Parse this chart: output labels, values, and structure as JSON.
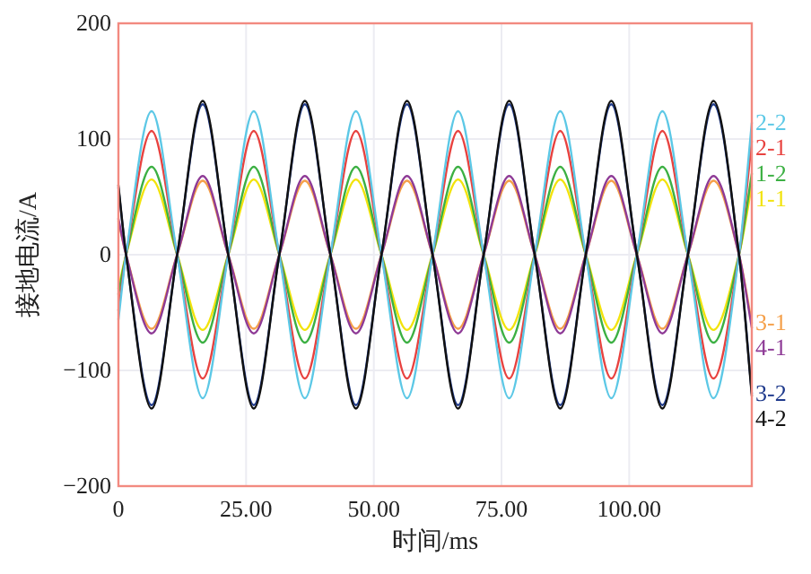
{
  "chart_data": {
    "type": "line",
    "xlabel": "时间/ms",
    "ylabel": "接地电流/A",
    "x": [
      0,
      1.5,
      6.5,
      11.5,
      16.5,
      21.5,
      26.5,
      31.5,
      36.5,
      41.5,
      46.5,
      51.5,
      56.5,
      61.5,
      66.5,
      71.5,
      76.5,
      81.5,
      86.5,
      91.5,
      96.5,
      101.5,
      106.5,
      111.5,
      116.5,
      121.5,
      124
    ],
    "xlim": [
      0,
      124
    ],
    "ylim": [
      -200,
      200
    ],
    "xticks": [
      0,
      {
        "value": 25,
        "label": "25.00"
      },
      {
        "value": 50,
        "label": "50.00"
      },
      {
        "value": 75,
        "label": "75.00"
      },
      {
        "value": 100,
        "label": "100.00"
      }
    ],
    "yticks": [
      200,
      100,
      0,
      {
        "value": -100,
        "label": "−100"
      },
      {
        "value": -200,
        "label": "−200"
      }
    ],
    "grid": true,
    "marker": "none",
    "line_style": "solid",
    "series": [
      {
        "name": "1-1",
        "color": "#f2e30c",
        "values": [
          -29,
          0,
          65,
          0,
          -65,
          0,
          65,
          0,
          -65,
          0,
          65,
          0,
          -65,
          0,
          65,
          0,
          -65,
          0,
          65,
          0,
          -65,
          0,
          65,
          0,
          -65,
          0,
          60
        ]
      },
      {
        "name": "1-2",
        "color": "#3cb043",
        "values": [
          -34,
          0,
          76,
          0,
          -76,
          0,
          76,
          0,
          -76,
          0,
          76,
          0,
          -76,
          0,
          76,
          0,
          -76,
          0,
          76,
          0,
          -76,
          0,
          76,
          0,
          -76,
          0,
          70
        ]
      },
      {
        "name": "2-1",
        "color": "#e8423f",
        "values": [
          -48,
          0,
          107,
          0,
          -107,
          0,
          107,
          0,
          -107,
          0,
          107,
          0,
          -107,
          0,
          107,
          0,
          -107,
          0,
          107,
          0,
          -107,
          0,
          107,
          0,
          -107,
          0,
          98
        ]
      },
      {
        "name": "2-2",
        "color": "#5cc8e6",
        "values": [
          -56,
          0,
          124,
          0,
          -124,
          0,
          124,
          0,
          -124,
          0,
          124,
          0,
          -124,
          0,
          124,
          0,
          -124,
          0,
          124,
          0,
          -124,
          0,
          124,
          0,
          -124,
          0,
          114
        ]
      },
      {
        "name": "3-1",
        "color": "#f5a04a",
        "values": [
          29,
          0,
          -64,
          0,
          64,
          0,
          -64,
          0,
          64,
          0,
          -64,
          0,
          64,
          0,
          -64,
          0,
          64,
          0,
          -64,
          0,
          64,
          0,
          -64,
          0,
          64,
          0,
          -59
        ]
      },
      {
        "name": "4-1",
        "color": "#8e3a96",
        "values": [
          31,
          0,
          -68,
          0,
          68,
          0,
          -68,
          0,
          68,
          0,
          -68,
          0,
          68,
          0,
          -68,
          0,
          68,
          0,
          -68,
          0,
          68,
          0,
          -68,
          0,
          68,
          0,
          -63
        ]
      },
      {
        "name": "3-2",
        "color": "#1f3a8c",
        "values": [
          58,
          0,
          -130,
          0,
          130,
          0,
          -130,
          0,
          130,
          0,
          -130,
          0,
          130,
          0,
          -130,
          0,
          130,
          0,
          -130,
          0,
          130,
          0,
          -130,
          0,
          130,
          0,
          -120
        ]
      },
      {
        "name": "4-2",
        "color": "#111111",
        "values": [
          60,
          0,
          -133,
          0,
          133,
          0,
          -133,
          0,
          133,
          0,
          -133,
          0,
          133,
          0,
          -133,
          0,
          133,
          0,
          -133,
          0,
          133,
          0,
          -133,
          0,
          133,
          0,
          -122
        ]
      }
    ]
  }
}
